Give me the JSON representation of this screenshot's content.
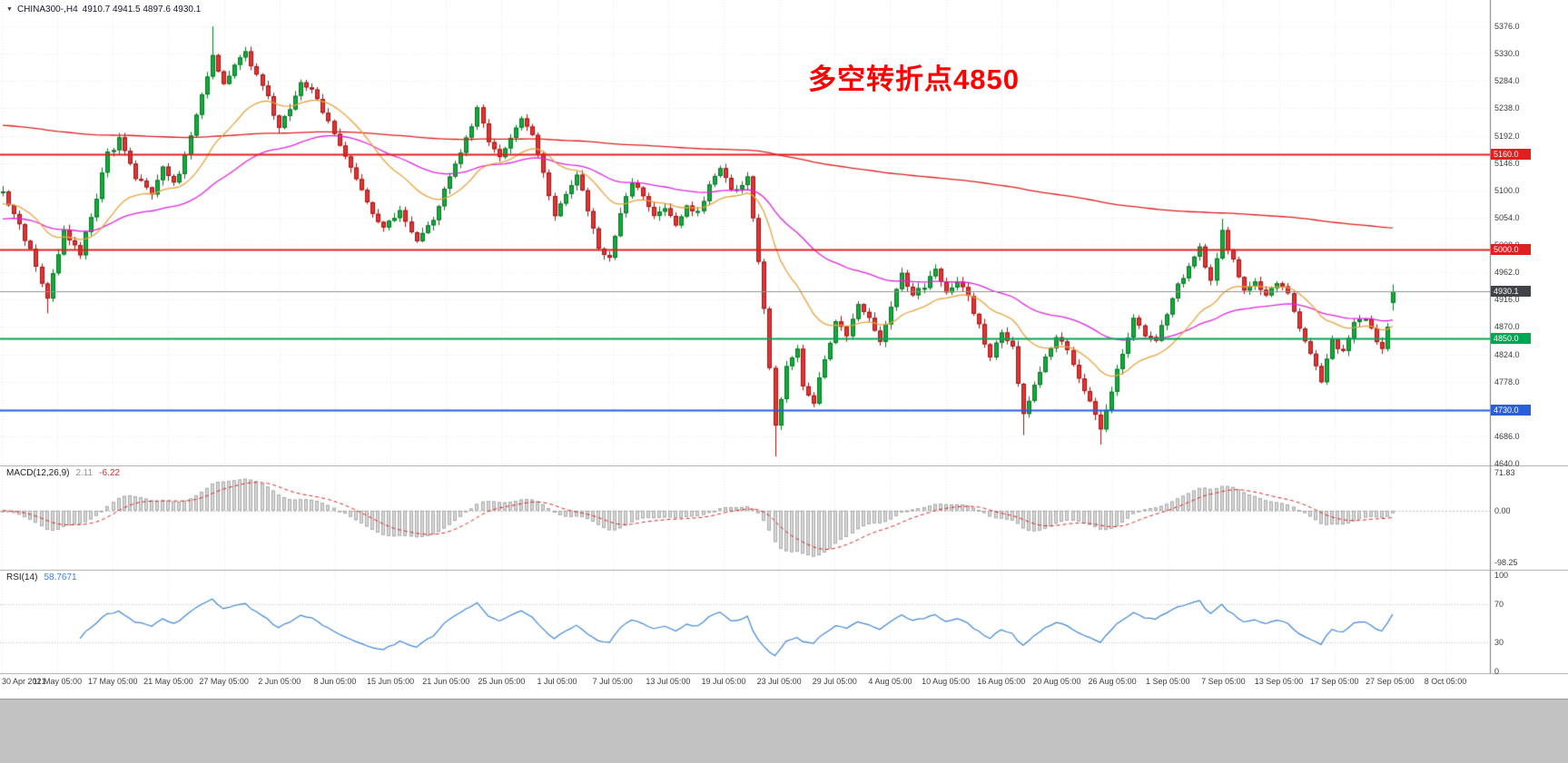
{
  "header": {
    "marker": "▼",
    "symbol_period": "CHINA300-,H4",
    "quote_line": "4910.7 4941.5 4897.6 4930.1"
  },
  "chart_data": {
    "type": "candlestick",
    "symbol": "CHINA300-",
    "timeframe": "H4",
    "quote": {
      "open": 4910.7,
      "high": 4941.5,
      "low": 4897.6,
      "close": 4930.1
    },
    "annotation": {
      "text": "多空转折点4850",
      "color": "#ff0000"
    },
    "y_axis": {
      "min": 4640.0,
      "max": 5376.0,
      "ticks": [
        5376.0,
        5330.0,
        5284.0,
        5238.0,
        5192.0,
        5146.0,
        5100.0,
        5054.0,
        5008.0,
        4962.0,
        4916.0,
        4870.0,
        4824.0,
        4778.0,
        4732.0,
        4686.0,
        4640.0
      ]
    },
    "x_axis": {
      "labels": [
        "30 Apr 2021",
        "11 May 05:00",
        "17 May 05:00",
        "21 May 05:00",
        "27 May 05:00",
        "2 Jun 05:00",
        "8 Jun 05:00",
        "15 Jun 05:00",
        "21 Jun 05:00",
        "25 Jun 05:00",
        "1 Jul 05:00",
        "7 Jul 05:00",
        "13 Jul 05:00",
        "19 Jul 05:00",
        "23 Jul 05:00",
        "29 Jul 05:00",
        "4 Aug 05:00",
        "10 Aug 05:00",
        "16 Aug 05:00",
        "20 Aug 05:00",
        "26 Aug 05:00",
        "1 Sep 05:00",
        "7 Sep 05:00",
        "13 Sep 05:00",
        "17 Sep 05:00",
        "27 Sep 05:00",
        "8 Oct 05:00"
      ]
    },
    "horizontal_lines": [
      {
        "price": 5160.0,
        "label": "5160.0",
        "color": "#e02020",
        "name": "resistance-5160"
      },
      {
        "price": 5000.0,
        "label": "5000.0",
        "color": "#e02020",
        "name": "resistance-5000"
      },
      {
        "price": 4850.0,
        "label": "4850.0",
        "color": "#00a651",
        "name": "pivot-4850"
      },
      {
        "price": 4730.0,
        "label": "4730.0",
        "color": "#2b5fd9",
        "name": "support-4730"
      }
    ],
    "current_price": {
      "value": 4930.1,
      "label": "4930.1",
      "tag_color": "#3f4348",
      "line_color": "#909090"
    },
    "candles_n": 253,
    "price_path": [
      [
        0,
        5095
      ],
      [
        3,
        5040
      ],
      [
        6,
        4975
      ],
      [
        8,
        4920
      ],
      [
        11,
        5030
      ],
      [
        14,
        4995
      ],
      [
        17,
        5090
      ],
      [
        19,
        5160
      ],
      [
        21,
        5185
      ],
      [
        24,
        5120
      ],
      [
        27,
        5095
      ],
      [
        29,
        5135
      ],
      [
        31,
        5110
      ],
      [
        33,
        5155
      ],
      [
        35,
        5230
      ],
      [
        37,
        5295
      ],
      [
        38,
        5330
      ],
      [
        40,
        5280
      ],
      [
        42,
        5310
      ],
      [
        44,
        5330
      ],
      [
        46,
        5290
      ],
      [
        48,
        5258
      ],
      [
        50,
        5200
      ],
      [
        52,
        5240
      ],
      [
        54,
        5278
      ],
      [
        56,
        5268
      ],
      [
        58,
        5235
      ],
      [
        60,
        5200
      ],
      [
        63,
        5140
      ],
      [
        66,
        5080
      ],
      [
        69,
        5035
      ],
      [
        72,
        5065
      ],
      [
        75,
        5015
      ],
      [
        78,
        5055
      ],
      [
        81,
        5120
      ],
      [
        84,
        5190
      ],
      [
        86,
        5235
      ],
      [
        88,
        5180
      ],
      [
        90,
        5160
      ],
      [
        92,
        5185
      ],
      [
        94,
        5220
      ],
      [
        96,
        5195
      ],
      [
        98,
        5130
      ],
      [
        100,
        5060
      ],
      [
        102,
        5090
      ],
      [
        104,
        5130
      ],
      [
        106,
        5070
      ],
      [
        108,
        5000
      ],
      [
        110,
        4985
      ],
      [
        112,
        5060
      ],
      [
        114,
        5110
      ],
      [
        116,
        5090
      ],
      [
        118,
        5060
      ],
      [
        120,
        5075
      ],
      [
        122,
        5045
      ],
      [
        124,
        5070
      ],
      [
        126,
        5060
      ],
      [
        128,
        5110
      ],
      [
        130,
        5135
      ],
      [
        132,
        5100
      ],
      [
        134,
        5112
      ],
      [
        135,
        5120
      ],
      [
        136,
        5050
      ],
      [
        138,
        4900
      ],
      [
        140,
        4700
      ],
      [
        142,
        4805
      ],
      [
        144,
        4835
      ],
      [
        145,
        4770
      ],
      [
        147,
        4745
      ],
      [
        149,
        4815
      ],
      [
        151,
        4880
      ],
      [
        153,
        4860
      ],
      [
        155,
        4905
      ],
      [
        157,
        4880
      ],
      [
        159,
        4850
      ],
      [
        161,
        4900
      ],
      [
        163,
        4960
      ],
      [
        165,
        4920
      ],
      [
        167,
        4940
      ],
      [
        169,
        4965
      ],
      [
        171,
        4930
      ],
      [
        173,
        4950
      ],
      [
        175,
        4925
      ],
      [
        177,
        4870
      ],
      [
        179,
        4820
      ],
      [
        181,
        4860
      ],
      [
        183,
        4835
      ],
      [
        185,
        4720
      ],
      [
        187,
        4770
      ],
      [
        189,
        4820
      ],
      [
        191,
        4855
      ],
      [
        193,
        4830
      ],
      [
        195,
        4780
      ],
      [
        197,
        4740
      ],
      [
        199,
        4695
      ],
      [
        201,
        4760
      ],
      [
        203,
        4830
      ],
      [
        205,
        4880
      ],
      [
        207,
        4860
      ],
      [
        209,
        4845
      ],
      [
        211,
        4895
      ],
      [
        213,
        4940
      ],
      [
        215,
        4975
      ],
      [
        217,
        5000
      ],
      [
        219,
        4950
      ],
      [
        221,
        5030
      ],
      [
        223,
        4980
      ],
      [
        225,
        4935
      ],
      [
        227,
        4950
      ],
      [
        229,
        4920
      ],
      [
        231,
        4940
      ],
      [
        233,
        4930
      ],
      [
        235,
        4870
      ],
      [
        237,
        4820
      ],
      [
        239,
        4780
      ],
      [
        241,
        4850
      ],
      [
        243,
        4825
      ],
      [
        245,
        4875
      ],
      [
        247,
        4885
      ],
      [
        249,
        4850
      ],
      [
        250,
        4835
      ],
      [
        251,
        4870
      ],
      [
        252,
        4930.1
      ]
    ],
    "extremes": [
      {
        "i": 8,
        "low": 4893.0
      },
      {
        "i": 38,
        "high": 5376.0
      },
      {
        "i": 140,
        "low": 4652.0
      },
      {
        "i": 185,
        "low": 4688.0
      },
      {
        "i": 199,
        "low": 4672.0
      },
      {
        "i": 221,
        "high": 5052.0
      }
    ],
    "moving_averages": [
      {
        "period": 400,
        "color": "#e02020",
        "seed": 5210
      },
      {
        "period": 55,
        "color": "#e322e3",
        "seed": 5050
      },
      {
        "period": 20,
        "color": "#e8a33d",
        "seed": 5075
      }
    ],
    "indicators": {
      "macd": {
        "label": "MACD(12,26,9)",
        "value_main": "2.11",
        "value_signal": "-6.22",
        "fast": 12,
        "slow": 26,
        "signal": 9,
        "max": 71.83,
        "min": -98.25,
        "scale_ticks": [
          "71.83",
          "0.00",
          "-98.25"
        ],
        "histogram_color": "#d8d8d8",
        "histogram_border": "#a0a0a0",
        "signal_color": "#e02020"
      },
      "rsi": {
        "label": "RSI(14)",
        "value": "58.7671",
        "period": 14,
        "scale_ticks": [
          "100",
          "70",
          "30",
          "0"
        ],
        "levels": [
          70,
          30
        ],
        "line_color": "#3e86d8"
      }
    },
    "colors": {
      "bull_fill": "#12ab3c",
      "bull_border": "#0a7526",
      "bear_fill": "#e23434",
      "bear_border": "#a61414",
      "grid": "#e9e9e9",
      "separator": "#a8a8a8",
      "scale_border": "#7a7a7a",
      "background": "#ffffff"
    }
  }
}
